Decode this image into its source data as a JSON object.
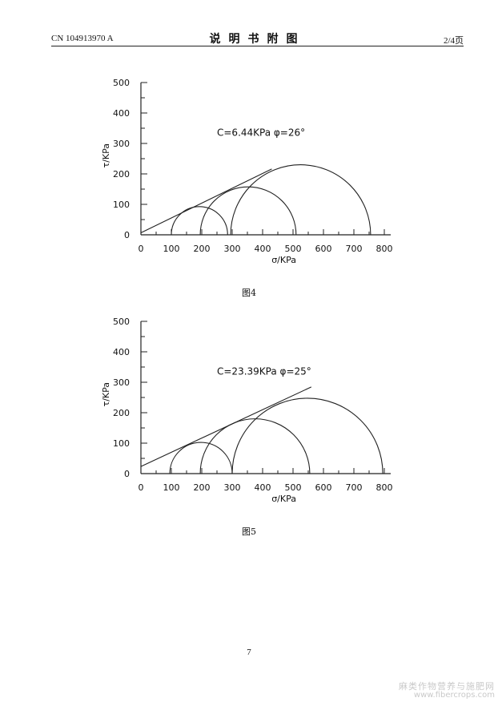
{
  "header": {
    "patent_number": "CN 104913970 A",
    "title": "说明书附图",
    "page_indicator": "2/4页"
  },
  "chart_data": [
    {
      "type": "line",
      "caption": "图4",
      "annotation": "C=6.44KPa φ=26°",
      "xlabel": "σ/KPa",
      "ylabel": "τ/KPa",
      "xlim": [
        0,
        800
      ],
      "ylim": [
        0,
        500
      ],
      "x_ticks": [
        0,
        100,
        200,
        300,
        400,
        500,
        600,
        700,
        800
      ],
      "y_ticks": [
        0,
        100,
        200,
        300,
        400,
        500
      ],
      "circles": [
        {
          "sigma3": 100,
          "sigma1": 285
        },
        {
          "sigma3": 195,
          "sigma1": 510
        },
        {
          "sigma3": 295,
          "sigma1": 755
        }
      ],
      "envelope": {
        "cohesion": 6.44,
        "friction_angle": 26,
        "x_range": [
          0,
          430
        ]
      }
    },
    {
      "type": "line",
      "caption": "图5",
      "annotation": "C=23.39KPa φ=25°",
      "xlabel": "σ/KPa",
      "ylabel": "τ/KPa",
      "xlim": [
        0,
        800
      ],
      "ylim": [
        0,
        500
      ],
      "x_ticks": [
        0,
        100,
        200,
        300,
        400,
        500,
        600,
        700,
        800
      ],
      "y_ticks": [
        0,
        100,
        200,
        300,
        400,
        500
      ],
      "circles": [
        {
          "sigma3": 95,
          "sigma1": 300
        },
        {
          "sigma3": 195,
          "sigma1": 555
        },
        {
          "sigma3": 300,
          "sigma1": 795
        }
      ],
      "envelope": {
        "cohesion": 23.39,
        "friction_angle": 25,
        "x_range": [
          0,
          560
        ]
      }
    }
  ],
  "page_number": "7",
  "watermark": {
    "line1": "麻类作物营养与施肥网",
    "line2": "www.fibercrops.com"
  }
}
